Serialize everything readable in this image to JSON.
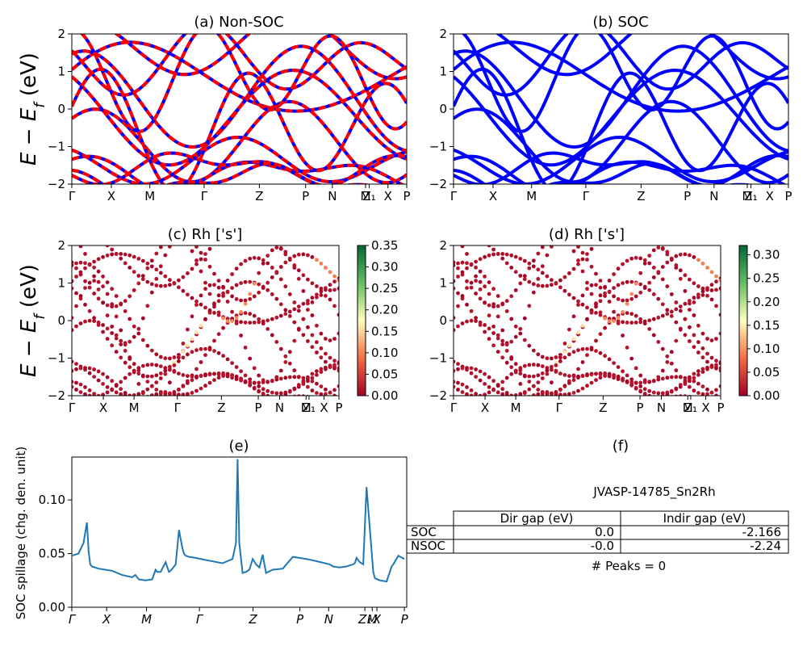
{
  "chart_data": [
    {
      "id": "a",
      "type": "line",
      "title": "(a) Non-SOC",
      "ylabel": "E − E_f (eV)",
      "ylim": [
        -2,
        2
      ],
      "yticks": [
        -2,
        -1,
        0,
        1,
        2
      ],
      "kpath": [
        {
          "label": "Γ",
          "x": 0.0
        },
        {
          "label": "X",
          "x": 0.118
        },
        {
          "label": "M",
          "x": 0.233
        },
        {
          "label": "Γ",
          "x": 0.395
        },
        {
          "label": "Z",
          "x": 0.56
        },
        {
          "label": "P",
          "x": 0.698
        },
        {
          "label": "N",
          "x": 0.778
        },
        {
          "label": "M",
          "x": 0.877
        },
        {
          "label": "Z₁",
          "x": 0.888
        },
        {
          "label": "X",
          "x": 0.944
        },
        {
          "label": "P",
          "x": 1.0
        }
      ],
      "series": [
        {
          "color": "#0000ff",
          "style": "solid"
        },
        {
          "color": "#ff0000",
          "style": "dashed"
        }
      ]
    },
    {
      "id": "b",
      "type": "line",
      "title": "(b) SOC",
      "ylim": [
        -2,
        2
      ],
      "yticks": [
        -2,
        -1,
        0,
        1,
        2
      ],
      "kpath": [
        {
          "label": "Γ",
          "x": 0.0
        },
        {
          "label": "X",
          "x": 0.118
        },
        {
          "label": "M",
          "x": 0.233
        },
        {
          "label": "Γ",
          "x": 0.395
        },
        {
          "label": "Z",
          "x": 0.56
        },
        {
          "label": "P",
          "x": 0.698
        },
        {
          "label": "N",
          "x": 0.778
        },
        {
          "label": "M",
          "x": 0.877
        },
        {
          "label": "Z₁",
          "x": 0.888
        },
        {
          "label": "X",
          "x": 0.944
        },
        {
          "label": "P",
          "x": 1.0
        }
      ],
      "series": [
        {
          "color": "#0000ff",
          "style": "solid"
        }
      ]
    },
    {
      "id": "c",
      "type": "scatter",
      "title": "(c)  Rh ['s']",
      "ylabel": "E − E_f (eV)",
      "ylim": [
        -2,
        2
      ],
      "yticks": [
        -2,
        -1,
        0,
        1,
        2
      ],
      "colorbar": {
        "min": 0.0,
        "max": 0.35,
        "ticks": [
          "0.00",
          "0.05",
          "0.10",
          "0.15",
          "0.20",
          "0.25",
          "0.30",
          "0.35"
        ],
        "cmap": "RdYlGn"
      },
      "kpath": [
        {
          "label": "Γ",
          "x": 0.0
        },
        {
          "label": "X",
          "x": 0.118
        },
        {
          "label": "M",
          "x": 0.233
        },
        {
          "label": "Γ",
          "x": 0.395
        },
        {
          "label": "Z",
          "x": 0.56
        },
        {
          "label": "P",
          "x": 0.698
        },
        {
          "label": "N",
          "x": 0.778
        },
        {
          "label": "M",
          "x": 0.877
        },
        {
          "label": "Z₁",
          "x": 0.888
        },
        {
          "label": "X",
          "x": 0.944
        },
        {
          "label": "P",
          "x": 1.0
        }
      ]
    },
    {
      "id": "d",
      "type": "scatter",
      "title": "(d) Rh ['s']",
      "ylim": [
        -2,
        2
      ],
      "yticks": [
        -2,
        -1,
        0,
        1,
        2
      ],
      "colorbar": {
        "min": 0.0,
        "max": 0.32,
        "ticks": [
          "0.00",
          "0.05",
          "0.10",
          "0.15",
          "0.20",
          "0.25",
          "0.30"
        ],
        "cmap": "RdYlGn"
      },
      "kpath": [
        {
          "label": "Γ",
          "x": 0.0
        },
        {
          "label": "X",
          "x": 0.118
        },
        {
          "label": "M",
          "x": 0.233
        },
        {
          "label": "Γ",
          "x": 0.395
        },
        {
          "label": "Z",
          "x": 0.56
        },
        {
          "label": "P",
          "x": 0.698
        },
        {
          "label": "N",
          "x": 0.778
        },
        {
          "label": "M",
          "x": 0.877
        },
        {
          "label": "Z₁",
          "x": 0.888
        },
        {
          "label": "X",
          "x": 0.944
        },
        {
          "label": "P",
          "x": 1.0
        }
      ]
    },
    {
      "id": "e",
      "type": "line",
      "title": "(e)",
      "ylabel": "SOC spillage (chg. den. unit)",
      "ylim": [
        0,
        0.14
      ],
      "yticks": [
        "0.00",
        "0.05",
        "0.10"
      ],
      "kpath": [
        {
          "label": "Γ",
          "x": 0.0
        },
        {
          "label": "X",
          "x": 0.104
        },
        {
          "label": "M",
          "x": 0.223
        },
        {
          "label": "Γ",
          "x": 0.381
        },
        {
          "label": "Z",
          "x": 0.541
        },
        {
          "label": "P",
          "x": 0.681
        },
        {
          "label": "N",
          "x": 0.767
        },
        {
          "label": "Z₁",
          "x": 0.875
        },
        {
          "label": "M",
          "x": 0.897
        },
        {
          "label": "X",
          "x": 0.911
        },
        {
          "label": "P",
          "x": 0.993
        }
      ],
      "x": [
        0.0,
        0.02,
        0.035,
        0.045,
        0.05,
        0.055,
        0.06,
        0.08,
        0.1,
        0.12,
        0.15,
        0.18,
        0.19,
        0.2,
        0.22,
        0.24,
        0.25,
        0.255,
        0.265,
        0.28,
        0.29,
        0.295,
        0.3,
        0.31,
        0.32,
        0.33,
        0.335,
        0.34,
        0.35,
        0.37,
        0.4,
        0.45,
        0.48,
        0.49,
        0.495,
        0.5,
        0.51,
        0.52,
        0.53,
        0.54,
        0.55,
        0.56,
        0.57,
        0.58,
        0.6,
        0.63,
        0.66,
        0.7,
        0.73,
        0.77,
        0.78,
        0.8,
        0.82,
        0.84,
        0.845,
        0.85,
        0.86,
        0.87,
        0.88,
        0.9,
        0.905,
        0.92,
        0.94,
        0.955,
        0.96,
        0.975,
        0.993
      ],
      "series": [
        {
          "color": "#1f77b4",
          "values": [
            0.048,
            0.05,
            0.06,
            0.079,
            0.052,
            0.04,
            0.038,
            0.036,
            0.035,
            0.034,
            0.03,
            0.028,
            0.03,
            0.026,
            0.025,
            0.026,
            0.035,
            0.033,
            0.033,
            0.042,
            0.033,
            0.034,
            0.036,
            0.04,
            0.072,
            0.055,
            0.05,
            0.048,
            0.047,
            0.046,
            0.044,
            0.041,
            0.045,
            0.06,
            0.138,
            0.06,
            0.032,
            0.033,
            0.035,
            0.045,
            0.04,
            0.037,
            0.049,
            0.032,
            0.035,
            0.036,
            0.047,
            0.045,
            0.043,
            0.04,
            0.038,
            0.037,
            0.038,
            0.04,
            0.041,
            0.046,
            0.042,
            0.04,
            0.112,
            0.033,
            0.027,
            0.025,
            0.024,
            0.038,
            0.04,
            0.048,
            0.045
          ]
        }
      ]
    }
  ],
  "panel_f": {
    "title": "(f)",
    "material": "JVASP-14785_Sn2Rh",
    "table": {
      "headers": [
        "Dir gap (eV)",
        "Indir gap (eV)"
      ],
      "rows": [
        {
          "label": "SOC",
          "dir": "0.0",
          "indir": "-2.166"
        },
        {
          "label": "NSOC",
          "dir": "-0.0",
          "indir": "-2.24"
        }
      ]
    },
    "peaks": "# Peaks = 0"
  }
}
